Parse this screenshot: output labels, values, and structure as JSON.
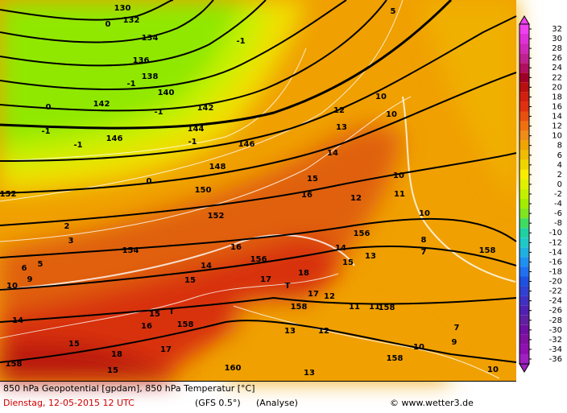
{
  "map_labels": [
    "130",
    "132",
    "134",
    "136",
    "138",
    "140",
    "142",
    "142",
    "144",
    "146",
    "146",
    "148",
    "150",
    "152",
    "152",
    "154",
    "156",
    "156",
    "158",
    "158",
    "158",
    "158",
    "158",
    "158",
    "160",
    "-1",
    "-1",
    "-1",
    "-1",
    "-1",
    "-1",
    "0",
    "0",
    "0",
    "5",
    "5",
    "10",
    "10",
    "10",
    "10",
    "10",
    "10",
    "10",
    "15",
    "15",
    "15",
    "15",
    "15",
    "15",
    "T",
    "T",
    "16",
    "12",
    "11",
    "14",
    "13",
    "12",
    "14",
    "16",
    "17",
    "18",
    "17",
    "12",
    "14",
    "13",
    "8",
    "7",
    "11",
    "11",
    "12",
    "13",
    "13",
    "7",
    "9",
    "18",
    "17",
    "16",
    "6",
    "9",
    "3",
    "2",
    "14"
  ],
  "colorbar": {
    "ticks": [
      32,
      30,
      28,
      26,
      24,
      22,
      20,
      18,
      16,
      14,
      12,
      10,
      8,
      6,
      4,
      2,
      0,
      -2,
      -4,
      -6,
      -8,
      -10,
      -12,
      -14,
      -16,
      -18,
      -20,
      -22,
      -24,
      -26,
      -28,
      -30,
      -32,
      -34,
      -36
    ],
    "colors": [
      "#f040f0",
      "#e030d8",
      "#d028b8",
      "#c02090",
      "#b01060",
      "#a00028",
      "#b81010",
      "#d02010",
      "#e03010",
      "#e85010",
      "#f07010",
      "#f08c18",
      "#f0a400",
      "#f0bc00",
      "#f0d400",
      "#f8ec00",
      "#e0f000",
      "#c4f000",
      "#a4ec00",
      "#80e420",
      "#40dc60",
      "#20d0a0",
      "#20c8c8",
      "#20b0e0",
      "#2090f0",
      "#2070f0",
      "#2050e0",
      "#3040d0",
      "#4030c0",
      "#5020b0",
      "#6020a0",
      "#7010a0",
      "#8010a0",
      "#9010b0",
      "#a020c0"
    ]
  },
  "footer": {
    "title": "850 hPa Geopotential [gpdam], 850 hPa Temperatur [°C]",
    "date": "Dienstag, 12-05-2015  12 UTC",
    "model": "(GFS 0.5°)",
    "run": "(Analyse)",
    "credit": "© www.wetter3.de"
  }
}
